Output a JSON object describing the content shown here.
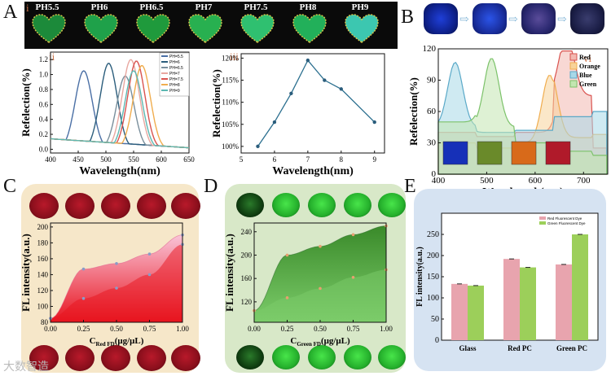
{
  "panel_A": {
    "letter": "A",
    "sub_i": "i",
    "sub_ii": "ii",
    "sub_iii": "iii",
    "heart_labels": [
      "PH5.5",
      "PH6",
      "PH6.5",
      "PH7",
      "PH7.5",
      "PH8",
      "PH9"
    ]
  },
  "panel_B": {
    "letter": "B",
    "sub_vi": "vi"
  },
  "panel_C": {
    "letter": "C"
  },
  "panel_D": {
    "letter": "D"
  },
  "panel_E": {
    "letter": "E"
  },
  "watermark": "大数智造",
  "chart_data": [
    {
      "id": "A-ii",
      "type": "line",
      "xlabel": "Wavelength(nm)",
      "ylabel": "Refelection(%)",
      "xlim": [
        400,
        650
      ],
      "ylim": [
        -0.05,
        1.3
      ],
      "xticks": [
        "400",
        "450",
        "500",
        "550",
        "600",
        "650"
      ],
      "yticks": [
        "0.0",
        "0.2",
        "0.4",
        "0.6",
        "0.8",
        "1.0",
        "1.2"
      ],
      "series": [
        {
          "name": "PH=5.5",
          "color": "#4a6fa5",
          "peak": 460,
          "height": 1.05
        },
        {
          "name": "PH=6",
          "color": "#2b5d7c",
          "peak": 505,
          "height": 1.15
        },
        {
          "name": "PH=6.5",
          "color": "#7a8f9c",
          "peak": 535,
          "height": 0.98
        },
        {
          "name": "PH=7",
          "color": "#e8a7a0",
          "peak": 545,
          "height": 1.2
        },
        {
          "name": "PH=7.5",
          "color": "#d9534f",
          "peak": 555,
          "height": 1.18
        },
        {
          "name": "PH=8",
          "color": "#f0ad4e",
          "peak": 565,
          "height": 1.12
        },
        {
          "name": "PH=9",
          "color": "#5cb8b2",
          "peak": 550,
          "height": 1.05
        }
      ]
    },
    {
      "id": "A-iii",
      "type": "line",
      "xlabel": "Wavelength(nm)",
      "ylabel": "Refelection(%)",
      "x": [
        5.5,
        6,
        6.5,
        7,
        7.5,
        8,
        9
      ],
      "y": [
        100,
        105.5,
        112,
        119.5,
        115,
        113,
        105.5
      ],
      "xlim": [
        5,
        9.3
      ],
      "ylim": [
        98.5,
        121
      ],
      "xticks": [
        "5",
        "6",
        "7",
        "8",
        "9"
      ],
      "yticks": [
        "100%",
        "105%",
        "110%",
        "115%",
        "120%"
      ]
    },
    {
      "id": "B-vi",
      "type": "area",
      "xlabel": "Wavelength(nm)",
      "ylabel": "Refelection(%)",
      "xlim": [
        400,
        750
      ],
      "ylim": [
        0,
        120
      ],
      "xticks": [
        "400",
        "500",
        "600",
        "700"
      ],
      "yticks": [
        "0",
        "30",
        "60",
        "90",
        "120"
      ],
      "series": [
        {
          "name": "Red",
          "color": "#d9534f",
          "fill": "#f2b8b0"
        },
        {
          "name": "Orange",
          "color": "#f0ad4e",
          "fill": "#f7d39a"
        },
        {
          "name": "Blue",
          "color": "#5aa9c8",
          "fill": "#a8d8e8"
        },
        {
          "name": "Green",
          "color": "#7cc26a",
          "fill": "#c2e6b0"
        }
      ]
    },
    {
      "id": "C",
      "type": "area",
      "xlabel_main": "C",
      "xlabel_sub": "Red FD",
      "xlabel_unit": "(μg/μL)",
      "ylabel": "FL intensity(a.u.)",
      "x": [
        0,
        0.25,
        0.5,
        0.75,
        1.0
      ],
      "series": [
        {
          "name": "upper",
          "values": [
            85,
            147,
            154,
            166,
            190
          ]
        },
        {
          "name": "lower",
          "values": [
            85,
            110,
            123,
            140,
            178
          ]
        }
      ],
      "xlim": [
        0,
        1.0
      ],
      "ylim": [
        80,
        205
      ],
      "xticks": [
        "0.00",
        "0.25",
        "0.50",
        "0.75",
        "1.00"
      ],
      "yticks": [
        "80",
        "100",
        "120",
        "140",
        "160",
        "180",
        "200"
      ]
    },
    {
      "id": "D",
      "type": "area",
      "xlabel_main": "C",
      "xlabel_sub": "Green FD",
      "xlabel_unit": "(μg/μL)",
      "ylabel": "FL intensity(a.u.)",
      "x": [
        0,
        0.25,
        0.5,
        0.75,
        1.0
      ],
      "series": [
        {
          "name": "upper",
          "values": [
            105,
            200,
            215,
            235,
            250
          ]
        },
        {
          "name": "lower",
          "values": [
            105,
            127,
            143,
            162,
            175
          ]
        }
      ],
      "xlim": [
        0,
        1.0
      ],
      "ylim": [
        85,
        255
      ],
      "xticks": [
        "0.00",
        "0.25",
        "0.50",
        "0.75",
        "1.00"
      ],
      "yticks": [
        "120",
        "160",
        "200",
        "240"
      ]
    },
    {
      "id": "E",
      "type": "bar",
      "ylabel": "FL intensity(a.u.)",
      "categories": [
        "Glass",
        "Red PC",
        "Green PC"
      ],
      "series": [
        {
          "name": "Red Fluorescent Dye",
          "color": "#e8a4ae",
          "values": [
            133,
            192,
            179
          ]
        },
        {
          "name": "Green Fluorescent Dye",
          "color": "#9ccf5a",
          "values": [
            129,
            172,
            250
          ]
        }
      ],
      "ylim": [
        0,
        300
      ],
      "yticks": [
        "0",
        "50",
        "100",
        "150",
        "200",
        "250"
      ]
    }
  ]
}
